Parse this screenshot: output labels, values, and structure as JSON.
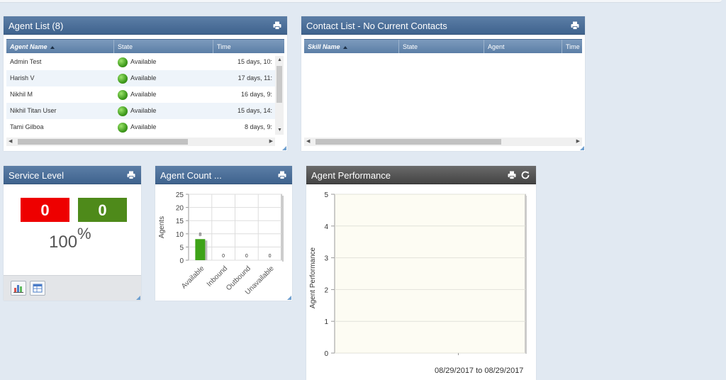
{
  "agent_list": {
    "title": "Agent List (8)",
    "columns": [
      "Agent Name",
      "State",
      "Time"
    ],
    "rows": [
      {
        "name": "Admin Test",
        "state": "Available",
        "time": "15 days, 10:"
      },
      {
        "name": "Harish V",
        "state": "Available",
        "time": "17 days, 11:"
      },
      {
        "name": "Nikhil M",
        "state": "Available",
        "time": "16 days, 9:"
      },
      {
        "name": "Nikhil Titan User",
        "state": "Available",
        "time": "15 days, 14:"
      },
      {
        "name": "Tami Gilboa",
        "state": "Available",
        "time": "8 days, 9:"
      }
    ]
  },
  "contact_list": {
    "title": "Contact List - No Current Contacts",
    "columns": [
      "Skill Name",
      "State",
      "Agent",
      "Time"
    ]
  },
  "service_level": {
    "title": "Service Level",
    "red_value": "0",
    "green_value": "0",
    "percent_value": "100",
    "percent_sign": "%"
  },
  "agent_count": {
    "title": "Agent Count ...",
    "chart_data": {
      "type": "bar",
      "categories": [
        "Available",
        "Inbound",
        "Outbound",
        "Unavailable"
      ],
      "values": [
        8,
        0,
        0,
        0
      ],
      "data_labels": [
        "8",
        "0",
        "0",
        "0"
      ],
      "ylabel": "Agents",
      "ylim": [
        0,
        25
      ],
      "yticks": [
        "0",
        "5",
        "10",
        "15",
        "20",
        "25"
      ],
      "grid": true,
      "bar_color": "#3ea318"
    }
  },
  "agent_performance": {
    "title": "Agent Performance",
    "chart_data": {
      "type": "line",
      "ylabel": "Agent Performance",
      "ylim": [
        0,
        5
      ],
      "yticks": [
        "0",
        "1",
        "2",
        "3",
        "4",
        "5"
      ],
      "series": [],
      "date_from": "08/29/2017",
      "date_to": "08/29/2017",
      "date_separator": "to"
    }
  },
  "colors": {
    "header_blue": "#3f638e",
    "red_box": "#ee0000",
    "green_box": "#4e8a1a"
  }
}
